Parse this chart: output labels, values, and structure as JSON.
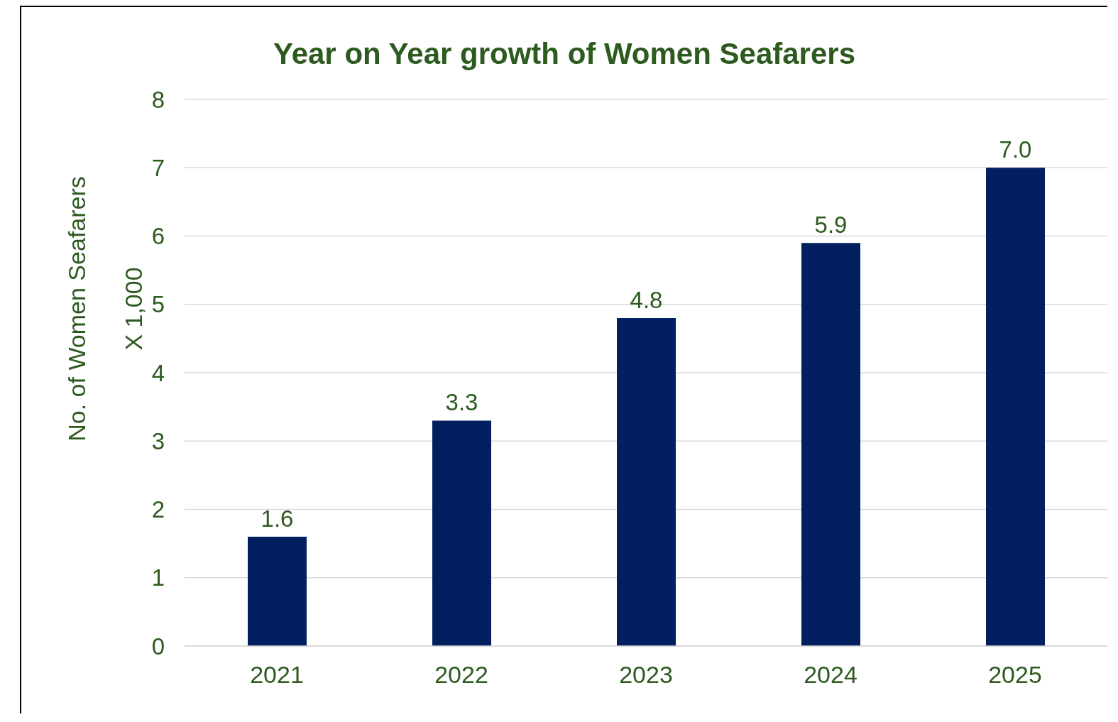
{
  "chart_data": {
    "type": "bar",
    "title": "Year on Year growth of Women Seafarers",
    "ylabel": "No. of Women Seafarers\nX 1,000",
    "categories": [
      "2021",
      "2022",
      "2023",
      "2024",
      "2025"
    ],
    "values": [
      1.6,
      3.3,
      4.8,
      5.9,
      7.0
    ],
    "value_labels": [
      "1.6",
      "3.3",
      "4.8",
      "5.9",
      "7.0"
    ],
    "color": "#022060",
    "ylim": [
      0,
      8
    ],
    "yticks": [
      0,
      1,
      2,
      3,
      4,
      5,
      6,
      7,
      8
    ],
    "grid": "y"
  }
}
